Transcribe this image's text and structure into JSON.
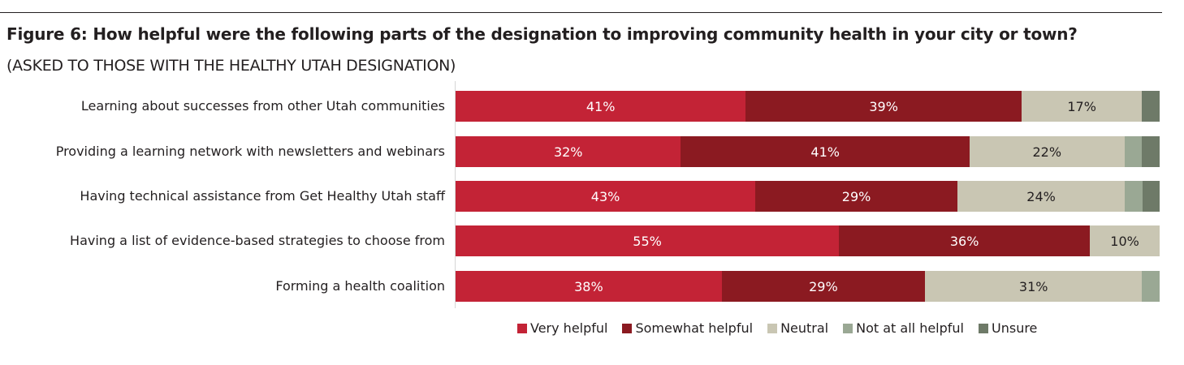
{
  "header": {
    "title": "Figure 6:  How helpful were the following parts of the designation to improving community health in your city or town?",
    "subtitle": "(ASKED TO THOSE WITH THE HEALTHY UTAH DESIGNATION)"
  },
  "colors": {
    "very_helpful": "#c32336",
    "somewhat_helpful": "#8b1a21",
    "neutral": "#c9c6b3",
    "not_at_all_helpful": "#9aa894",
    "unsure": "#6e7a68"
  },
  "chart_data": {
    "type": "bar",
    "orientation": "horizontal",
    "stacked": true,
    "title": "Figure 6:  How helpful were the following parts of the designation to improving community health in your city or town?",
    "subtitle": "(ASKED TO THOSE WITH THE HEALTHY UTAH DESIGNATION)",
    "categories": [
      "Learning about successes from other Utah communities",
      "Providing a learning network with newsletters and webinars",
      "Having technical assistance from Get Healthy Utah staff",
      "Having a list of evidence-based strategies to choose from",
      "Forming a health coalition"
    ],
    "series": [
      {
        "name": "Very helpful",
        "key": "very_helpful",
        "values": [
          41,
          32,
          43,
          55,
          38
        ],
        "labels": [
          "41%",
          "32%",
          "43%",
          "55%",
          "38%"
        ]
      },
      {
        "name": "Somewhat helpful",
        "key": "somewhat_helpful",
        "values": [
          39,
          41,
          29,
          36,
          29
        ],
        "labels": [
          "39%",
          "41%",
          "29%",
          "36%",
          "29%"
        ]
      },
      {
        "name": "Neutral",
        "key": "neutral",
        "values": [
          17,
          22,
          24,
          10,
          31
        ],
        "labels": [
          "17%",
          "22%",
          "24%",
          "10%",
          "31%"
        ]
      },
      {
        "name": "Not at all helpful",
        "key": "not_at_all_helpful",
        "values": [
          0,
          2.5,
          2.5,
          0,
          2.5
        ],
        "labels": [
          "",
          "",
          "",
          "",
          ""
        ]
      },
      {
        "name": "Unsure",
        "key": "unsure",
        "values": [
          2.5,
          2.5,
          2.5,
          0,
          0
        ],
        "labels": [
          "",
          "",
          "",
          "",
          ""
        ]
      }
    ],
    "xlim": [
      0,
      100
    ],
    "xlabel": "",
    "ylabel": "",
    "grid": false,
    "legend_position": "bottom"
  }
}
